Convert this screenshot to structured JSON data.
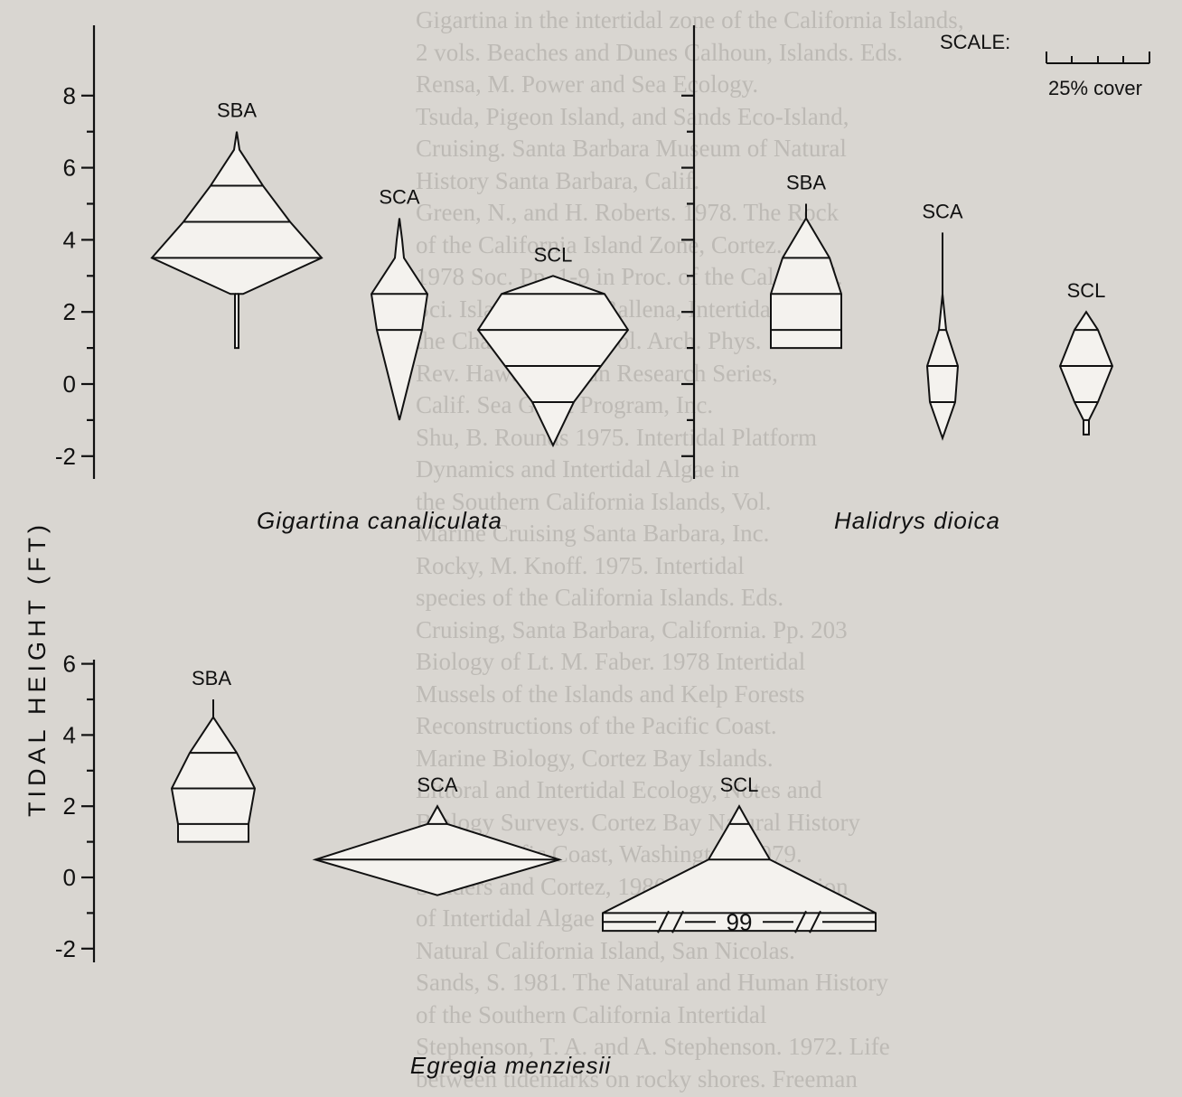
{
  "figure": {
    "y_axis_title": "TIDAL HEIGHT (FT)",
    "scale": {
      "label": "SCALE:",
      "caption": "25% cover"
    }
  },
  "chart_data": [
    {
      "type": "kite diagram",
      "species": "Gigartina canaliculata",
      "ylabel": "TIDAL HEIGHT (FT)",
      "ylim": [
        -2,
        8
      ],
      "yticks": [
        "8",
        "6",
        "4",
        "2",
        "0",
        "-2"
      ],
      "sites": [
        {
          "site": "SBA",
          "profile": [
            [
              1.0,
              4
            ],
            [
              2.5,
              4
            ],
            [
              2.5,
              14
            ],
            [
              3.5,
              188
            ],
            [
              4.5,
              118
            ],
            [
              5.5,
              58
            ],
            [
              6.5,
              6
            ],
            [
              7.0,
              0
            ]
          ],
          "bands": [
            2.5,
            3.5,
            4.5,
            5.5
          ]
        },
        {
          "site": "SCA",
          "profile": [
            [
              -1.0,
              0
            ],
            [
              1.5,
              50
            ],
            [
              2.5,
              62
            ],
            [
              3.5,
              10
            ],
            [
              4.0,
              6
            ],
            [
              4.6,
              0
            ]
          ],
          "bands": [
            1.5,
            2.5
          ]
        },
        {
          "site": "SCL",
          "profile": [
            [
              -1.7,
              0
            ],
            [
              -0.5,
              46
            ],
            [
              0.5,
              106
            ],
            [
              1.5,
              166
            ],
            [
              2.5,
              114
            ],
            [
              3.0,
              0
            ]
          ],
          "bands": [
            -0.5,
            0.5,
            1.5,
            2.5
          ]
        }
      ]
    },
    {
      "type": "kite diagram",
      "species": "Halidrys dioica",
      "ylabel": "TIDAL HEIGHT (FT)",
      "ylim": [
        -2,
        8
      ],
      "yticks": [],
      "sites": [
        {
          "site": "SBA",
          "profile": [
            [
              1.0,
              78
            ],
            [
              1.5,
              78
            ],
            [
              2.5,
              78
            ],
            [
              3.5,
              52
            ],
            [
              4.6,
              0
            ],
            [
              5.0,
              0
            ]
          ],
          "bands": [
            1.5,
            2.5,
            3.5
          ]
        },
        {
          "site": "SCA",
          "profile": [
            [
              -1.5,
              0
            ],
            [
              -0.5,
              28
            ],
            [
              0.5,
              34
            ],
            [
              1.5,
              8
            ],
            [
              2.5,
              0
            ],
            [
              4.2,
              0
            ]
          ],
          "bands": [
            -0.5,
            0.5,
            1.5
          ]
        },
        {
          "site": "SCL",
          "profile": [
            [
              -1.4,
              6
            ],
            [
              -1.0,
              6
            ],
            [
              -0.5,
              26
            ],
            [
              0.5,
              58
            ],
            [
              1.5,
              26
            ],
            [
              2.0,
              0
            ]
          ],
          "bands": [
            -1.0,
            -0.5,
            0.5,
            1.5
          ]
        }
      ]
    },
    {
      "type": "kite diagram",
      "species": "Egregia menziesii",
      "ylabel": "TIDAL HEIGHT (FT)",
      "ylim": [
        -2,
        6
      ],
      "yticks": [
        "6",
        "4",
        "2",
        "0",
        "-2"
      ],
      "sites": [
        {
          "site": "SBA",
          "profile": [
            [
              1.0,
              78
            ],
            [
              1.5,
              78
            ],
            [
              2.5,
              92
            ],
            [
              3.5,
              52
            ],
            [
              4.5,
              0
            ],
            [
              5.0,
              0
            ]
          ],
          "bands": [
            1.5,
            2.5,
            3.5
          ]
        },
        {
          "site": "SCA",
          "profile": [
            [
              -0.5,
              0
            ],
            [
              0.5,
              270
            ],
            [
              1.5,
              22
            ],
            [
              2.0,
              0
            ]
          ],
          "bands": [
            0.5,
            1.5
          ]
        },
        {
          "site": "SCL",
          "profile": [
            [
              -1.5,
              302
            ],
            [
              -1.0,
              302
            ],
            [
              0.5,
              68
            ],
            [
              1.5,
              22
            ],
            [
              2.0,
              0
            ]
          ],
          "bands": [
            -1.0,
            0.5,
            1.5
          ],
          "annotation": "99"
        }
      ]
    }
  ],
  "page_text_lines": [
    "Gigartina in the intertidal zone of the California Islands,",
    "2 vols. Beaches and Dunes Calhoun, Islands. Eds.",
    "Rensa, M. Power and Sea Ecology.",
    "Tsuda, Pigeon Island, and Sands Eco-Island,",
    "Cruising. Santa Barbara Museum of Natural",
    "History Santa Barbara, Calif.",
    "Green, N., and H. Roberts. 1978. The Rock",
    "of the California Island Zone, Cortez.",
    "1978 Soc. Pp. 1-9 in Proc. of the Cal. Acad.",
    "Sci. Isla Cruz, Isla Ballena, Intertidal",
    "the Channel Island vol. Arch. Phys.",
    "Rev. Hawaii. Ocean Research Series,",
    "Calif. Sea Grant Program, Inc.",
    "Shu, B. Rounds 1975. Intertidal Platform",
    "Dynamics and Intertidal Algae in",
    "the Southern California Islands, Vol.",
    "Marine Cruising Santa Barbara, Inc.",
    "Rocky, M. Knoff. 1975. Intertidal",
    "species of the California Islands. Eds.",
    "Cruising, Santa Barbara, California. Pp. 203",
    "Biology of Lt. M. Faber. 1978 Intertidal",
    "Mussels of the Islands and Kelp Forests",
    "Reconstructions of the Pacific Coast.",
    "Marine Biology, Cortez Bay Islands.",
    "Littoral and Intertidal Ecology, Notes and",
    "Biology Surveys. Cortez Bay Natural History",
    "of the Pacific Coast, Washington, 1979.",
    "Sanders and Cortez, 1980. Vertical Zonation",
    "of Intertidal Algae on Santa Cruz Island",
    "Natural California Island, San Nicolas.",
    "Sands, S. 1981. The Natural and Human History",
    "of the Southern California Intertidal",
    "Stephenson, T. A. and A. Stephenson. 1972. Life",
    "between tidemarks on rocky shores. Freeman"
  ]
}
